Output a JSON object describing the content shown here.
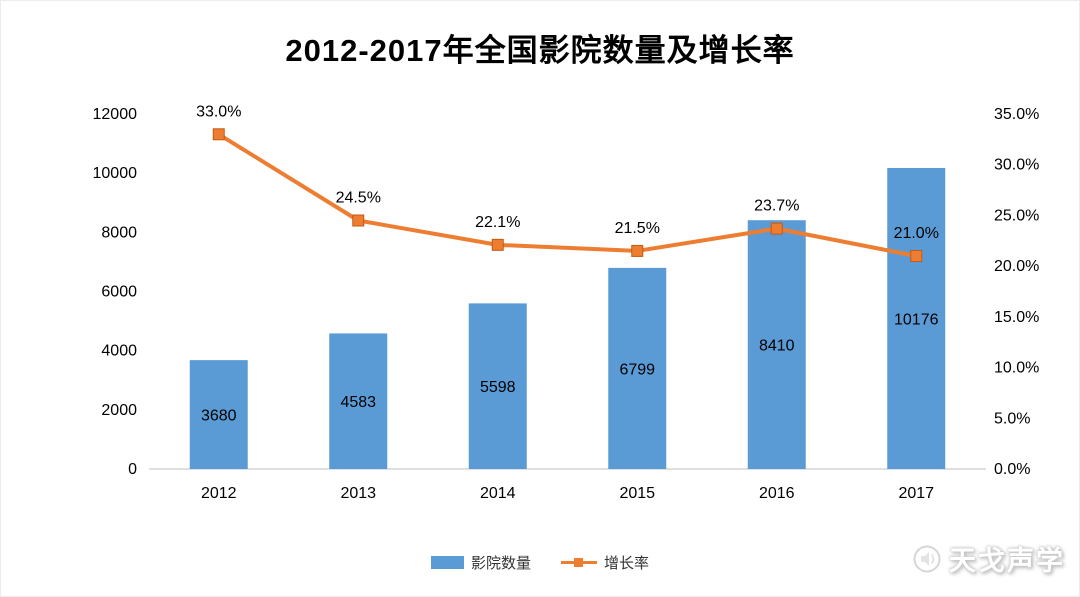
{
  "chart_data": {
    "type": "bar+line",
    "title": "2012-2017年全国影院数量及增长率",
    "categories": [
      "2012",
      "2013",
      "2014",
      "2015",
      "2016",
      "2017"
    ],
    "series": [
      {
        "name": "影院数量",
        "type": "bar",
        "axis": "left",
        "color": "#5B9BD5",
        "values": [
          3680,
          4583,
          5598,
          6799,
          8410,
          10176
        ],
        "labels": [
          "3680",
          "4583",
          "5598",
          "6799",
          "8410",
          "10176"
        ]
      },
      {
        "name": "增长率",
        "type": "line",
        "axis": "right",
        "color": "#ED7D31",
        "marker": "square",
        "values": [
          33.0,
          24.5,
          22.1,
          21.5,
          23.7,
          21.0
        ],
        "labels": [
          "33.0%",
          "24.5%",
          "22.1%",
          "21.5%",
          "23.7%",
          "21.0%"
        ]
      }
    ],
    "left_axis": {
      "min": 0,
      "max": 12000,
      "step": 2000,
      "ticks": [
        "0",
        "2000",
        "4000",
        "6000",
        "8000",
        "10000",
        "12000"
      ]
    },
    "right_axis": {
      "min": 0,
      "max": 35,
      "step": 5,
      "ticks": [
        "0.0%",
        "5.0%",
        "10.0%",
        "15.0%",
        "20.0%",
        "25.0%",
        "30.0%",
        "35.0%"
      ]
    },
    "grid": false,
    "legend_position": "bottom"
  },
  "legend": [
    {
      "label": "影院数量",
      "type": "bar",
      "color": "#5B9BD5"
    },
    {
      "label": "增长率",
      "type": "line",
      "color": "#ED7D31"
    }
  ],
  "watermark": {
    "text": "天戈声学",
    "icon": "speaker-icon"
  },
  "colors": {
    "bar": "#5B9BD5",
    "line": "#ED7D31",
    "axis_line": "#BFBFBF",
    "text": "#000000",
    "background": "#FFFFFF"
  }
}
